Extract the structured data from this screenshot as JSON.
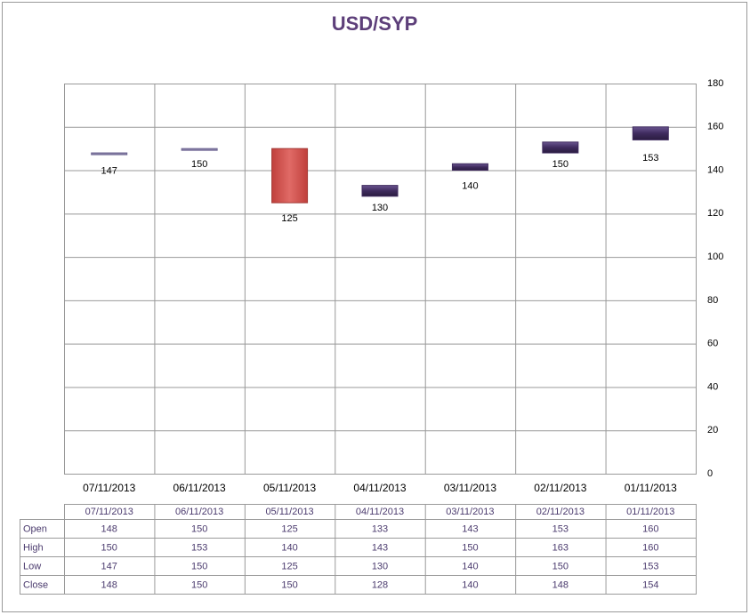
{
  "chart_data": {
    "type": "candlestick",
    "title": "USD/SYP",
    "categories": [
      "07/11/2013",
      "06/11/2013",
      "05/11/2013",
      "04/11/2013",
      "03/11/2013",
      "02/11/2013",
      "01/11/2013"
    ],
    "series": [
      {
        "name": "Open",
        "values": [
          148,
          150,
          125,
          133,
          143,
          153,
          160
        ]
      },
      {
        "name": "High",
        "values": [
          150,
          153,
          140,
          143,
          150,
          163,
          160
        ]
      },
      {
        "name": "Low",
        "values": [
          147,
          150,
          125,
          130,
          140,
          150,
          153
        ]
      },
      {
        "name": "Close",
        "values": [
          148,
          150,
          150,
          128,
          140,
          148,
          154
        ]
      }
    ],
    "up_color": "#d0504c",
    "down_color": "#3f2b5e",
    "ylim": [
      0,
      180
    ],
    "yticks": [
      0,
      20,
      40,
      60,
      80,
      100,
      120,
      140,
      160,
      180
    ],
    "grid": true
  }
}
